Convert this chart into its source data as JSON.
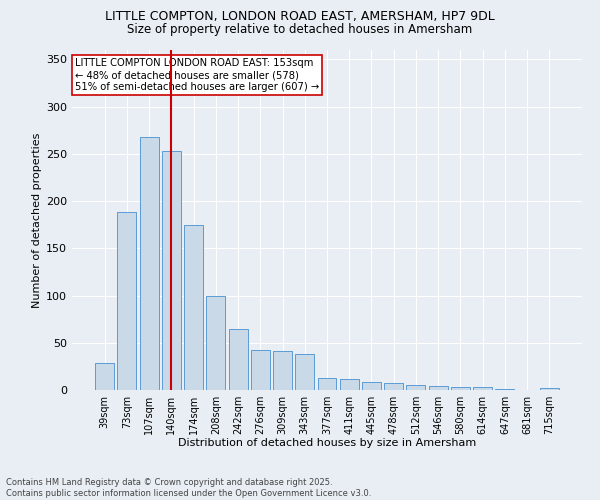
{
  "title1": "LITTLE COMPTON, LONDON ROAD EAST, AMERSHAM, HP7 9DL",
  "title2": "Size of property relative to detached houses in Amersham",
  "xlabel": "Distribution of detached houses by size in Amersham",
  "ylabel": "Number of detached properties",
  "categories": [
    "39sqm",
    "73sqm",
    "107sqm",
    "140sqm",
    "174sqm",
    "208sqm",
    "242sqm",
    "276sqm",
    "309sqm",
    "343sqm",
    "377sqm",
    "411sqm",
    "445sqm",
    "478sqm",
    "512sqm",
    "546sqm",
    "580sqm",
    "614sqm",
    "647sqm",
    "681sqm",
    "715sqm"
  ],
  "values": [
    29,
    188,
    268,
    253,
    175,
    100,
    65,
    42,
    41,
    38,
    13,
    12,
    8,
    7,
    5,
    4,
    3,
    3,
    1,
    0,
    2
  ],
  "bar_color": "#c9d9e8",
  "bar_edge_color": "#5b9bd5",
  "vline_x": 3,
  "vline_color": "#cc0000",
  "annotation_text": "LITTLE COMPTON LONDON ROAD EAST: 153sqm\n← 48% of detached houses are smaller (578)\n51% of semi-detached houses are larger (607) →",
  "annotation_box_color": "#ffffff",
  "annotation_box_edge": "#cc0000",
  "background_color": "#e8eef4",
  "grid_color": "#ffffff",
  "ylim": [
    0,
    360
  ],
  "yticks": [
    0,
    50,
    100,
    150,
    200,
    250,
    300,
    350
  ],
  "footer": "Contains HM Land Registry data © Crown copyright and database right 2025.\nContains public sector information licensed under the Open Government Licence v3.0."
}
